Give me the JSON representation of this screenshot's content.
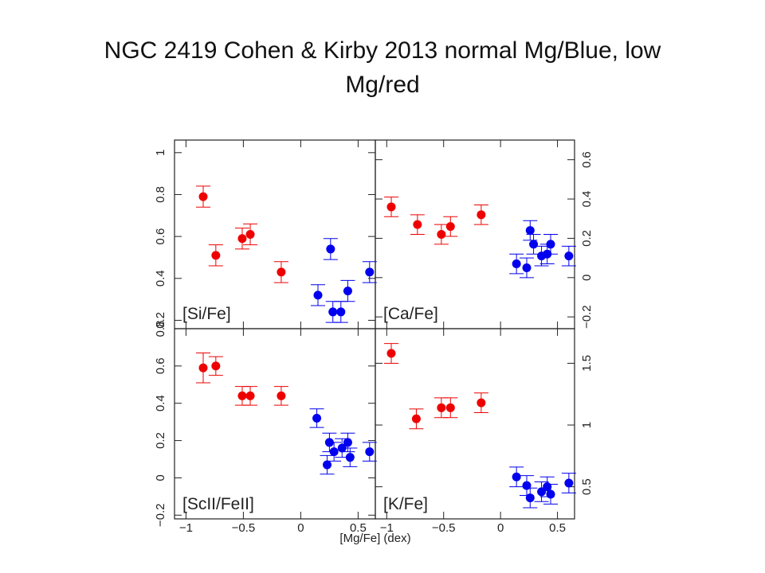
{
  "slide": {
    "title_line1": "NGC 2419  Cohen & Kirby 2013 normal Mg/Blue, low",
    "title_line2": "Mg/red"
  },
  "chart_data": {
    "type": "scatter",
    "xlabel": "[Mg/Fe] (dex)",
    "xlim": [
      -1.1,
      0.65
    ],
    "x_ticks": [
      "−1",
      "−0.5",
      "0",
      "0.5"
    ],
    "colors": {
      "normal_mg": "#0000ee",
      "low_mg": "#ee0000"
    },
    "panels": [
      {
        "id": "si",
        "label": "[Si/Fe]",
        "ylim": [
          0.16,
          1.06
        ],
        "yticks": [
          0.2,
          0.4,
          0.6,
          0.8,
          1
        ],
        "ytick_labels": [
          "0.2",
          "0.4",
          "0.6",
          "0.8",
          "1"
        ],
        "y_axis_side": "left",
        "series": [
          {
            "group": "red",
            "points": [
              {
                "x": -0.85,
                "y": 0.79,
                "err": 0.05
              },
              {
                "x": -0.74,
                "y": 0.51,
                "err": 0.05
              },
              {
                "x": -0.51,
                "y": 0.59,
                "err": 0.05
              },
              {
                "x": -0.44,
                "y": 0.61,
                "err": 0.05
              },
              {
                "x": -0.17,
                "y": 0.43,
                "err": 0.05
              }
            ]
          },
          {
            "group": "blue",
            "points": [
              {
                "x": 0.15,
                "y": 0.32,
                "err": 0.05
              },
              {
                "x": 0.26,
                "y": 0.54,
                "err": 0.05
              },
              {
                "x": 0.28,
                "y": 0.24,
                "err": 0.05
              },
              {
                "x": 0.35,
                "y": 0.24,
                "err": 0.05
              },
              {
                "x": 0.41,
                "y": 0.34,
                "err": 0.05
              },
              {
                "x": 0.6,
                "y": 0.43,
                "err": 0.05
              }
            ]
          }
        ]
      },
      {
        "id": "ca",
        "label": "[Ca/Fe]",
        "ylim": [
          -0.26,
          0.7
        ],
        "yticks": [
          -0.2,
          0,
          0.2,
          0.4,
          0.6
        ],
        "ytick_labels": [
          "−0.2",
          "0",
          "0.2",
          "0.4",
          "0.6"
        ],
        "y_axis_side": "right",
        "series": [
          {
            "group": "red",
            "points": [
              {
                "x": -0.96,
                "y": 0.36,
                "err": 0.05
              },
              {
                "x": -0.73,
                "y": 0.27,
                "err": 0.05
              },
              {
                "x": -0.52,
                "y": 0.22,
                "err": 0.05
              },
              {
                "x": -0.44,
                "y": 0.26,
                "err": 0.05
              },
              {
                "x": -0.17,
                "y": 0.32,
                "err": 0.05
              }
            ]
          },
          {
            "group": "blue",
            "points": [
              {
                "x": 0.14,
                "y": 0.07,
                "err": 0.05
              },
              {
                "x": 0.23,
                "y": 0.05,
                "err": 0.05
              },
              {
                "x": 0.26,
                "y": 0.24,
                "err": 0.05
              },
              {
                "x": 0.29,
                "y": 0.17,
                "err": 0.05
              },
              {
                "x": 0.36,
                "y": 0.11,
                "err": 0.05
              },
              {
                "x": 0.41,
                "y": 0.12,
                "err": 0.05
              },
              {
                "x": 0.44,
                "y": 0.17,
                "err": 0.05
              },
              {
                "x": 0.6,
                "y": 0.11,
                "err": 0.05
              }
            ]
          }
        ]
      },
      {
        "id": "sc",
        "label": "[ScII/FeII]",
        "ylim": [
          -0.22,
          0.8
        ],
        "yticks": [
          -0.2,
          0,
          0.2,
          0.4,
          0.6,
          0.8
        ],
        "ytick_labels": [
          "−0.2",
          "0",
          "0.2",
          "0.4",
          "0.6",
          "0.8"
        ],
        "y_axis_side": "left",
        "series": [
          {
            "group": "red",
            "points": [
              {
                "x": -0.85,
                "y": 0.59,
                "err": 0.08
              },
              {
                "x": -0.74,
                "y": 0.6,
                "err": 0.05
              },
              {
                "x": -0.51,
                "y": 0.44,
                "err": 0.05
              },
              {
                "x": -0.44,
                "y": 0.44,
                "err": 0.05
              },
              {
                "x": -0.17,
                "y": 0.44,
                "err": 0.05
              }
            ]
          },
          {
            "group": "blue",
            "points": [
              {
                "x": 0.14,
                "y": 0.32,
                "err": 0.05
              },
              {
                "x": 0.23,
                "y": 0.07,
                "err": 0.05
              },
              {
                "x": 0.25,
                "y": 0.19,
                "err": 0.05
              },
              {
                "x": 0.29,
                "y": 0.14,
                "err": 0.05
              },
              {
                "x": 0.36,
                "y": 0.16,
                "err": 0.05
              },
              {
                "x": 0.41,
                "y": 0.19,
                "err": 0.05
              },
              {
                "x": 0.43,
                "y": 0.11,
                "err": 0.05
              },
              {
                "x": 0.6,
                "y": 0.14,
                "err": 0.05
              }
            ]
          }
        ]
      },
      {
        "id": "k",
        "label": "[K/Fe]",
        "ylim": [
          0.24,
          1.78
        ],
        "yticks": [
          0.5,
          1,
          1.5
        ],
        "ytick_labels": [
          "0.5",
          "1",
          "1.5"
        ],
        "y_axis_side": "right",
        "series": [
          {
            "group": "red",
            "points": [
              {
                "x": -0.96,
                "y": 1.58,
                "err": 0.08
              },
              {
                "x": -0.74,
                "y": 1.05,
                "err": 0.08
              },
              {
                "x": -0.52,
                "y": 1.14,
                "err": 0.08
              },
              {
                "x": -0.44,
                "y": 1.14,
                "err": 0.08
              },
              {
                "x": -0.17,
                "y": 1.18,
                "err": 0.08
              }
            ]
          },
          {
            "group": "blue",
            "points": [
              {
                "x": 0.14,
                "y": 0.58,
                "err": 0.08
              },
              {
                "x": 0.23,
                "y": 0.51,
                "err": 0.08
              },
              {
                "x": 0.26,
                "y": 0.41,
                "err": 0.08
              },
              {
                "x": 0.36,
                "y": 0.46,
                "err": 0.08
              },
              {
                "x": 0.41,
                "y": 0.5,
                "err": 0.08
              },
              {
                "x": 0.44,
                "y": 0.44,
                "err": 0.08
              },
              {
                "x": 0.6,
                "y": 0.53,
                "err": 0.08
              }
            ]
          }
        ]
      }
    ]
  }
}
